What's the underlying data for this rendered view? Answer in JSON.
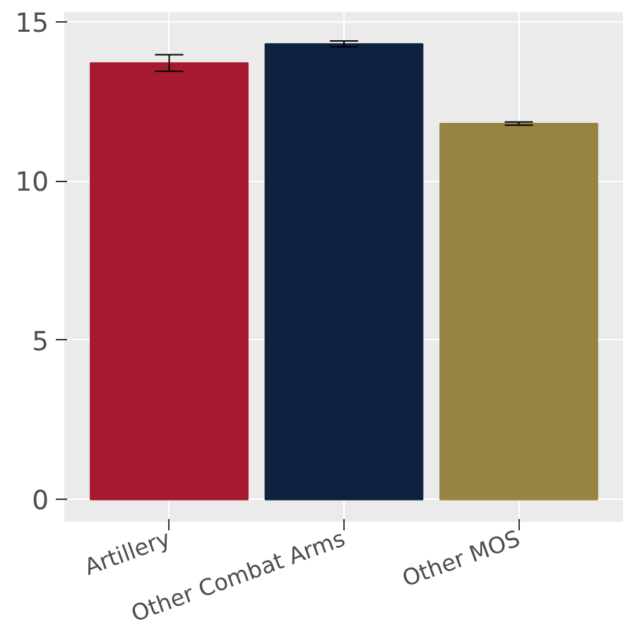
{
  "chart_data": {
    "type": "bar",
    "categories": [
      "Artillery",
      "Other Combat Arms",
      "Other MOS"
    ],
    "values": [
      13.7,
      14.3,
      11.8
    ],
    "colors": [
      "#a6192e",
      "#0e2240",
      "#978442"
    ],
    "errors": [
      0.26,
      0.09,
      0.05
    ],
    "ylim": [
      -0.7,
      15.3
    ],
    "yticks": [
      0,
      5,
      10,
      15
    ],
    "grid": true
  }
}
